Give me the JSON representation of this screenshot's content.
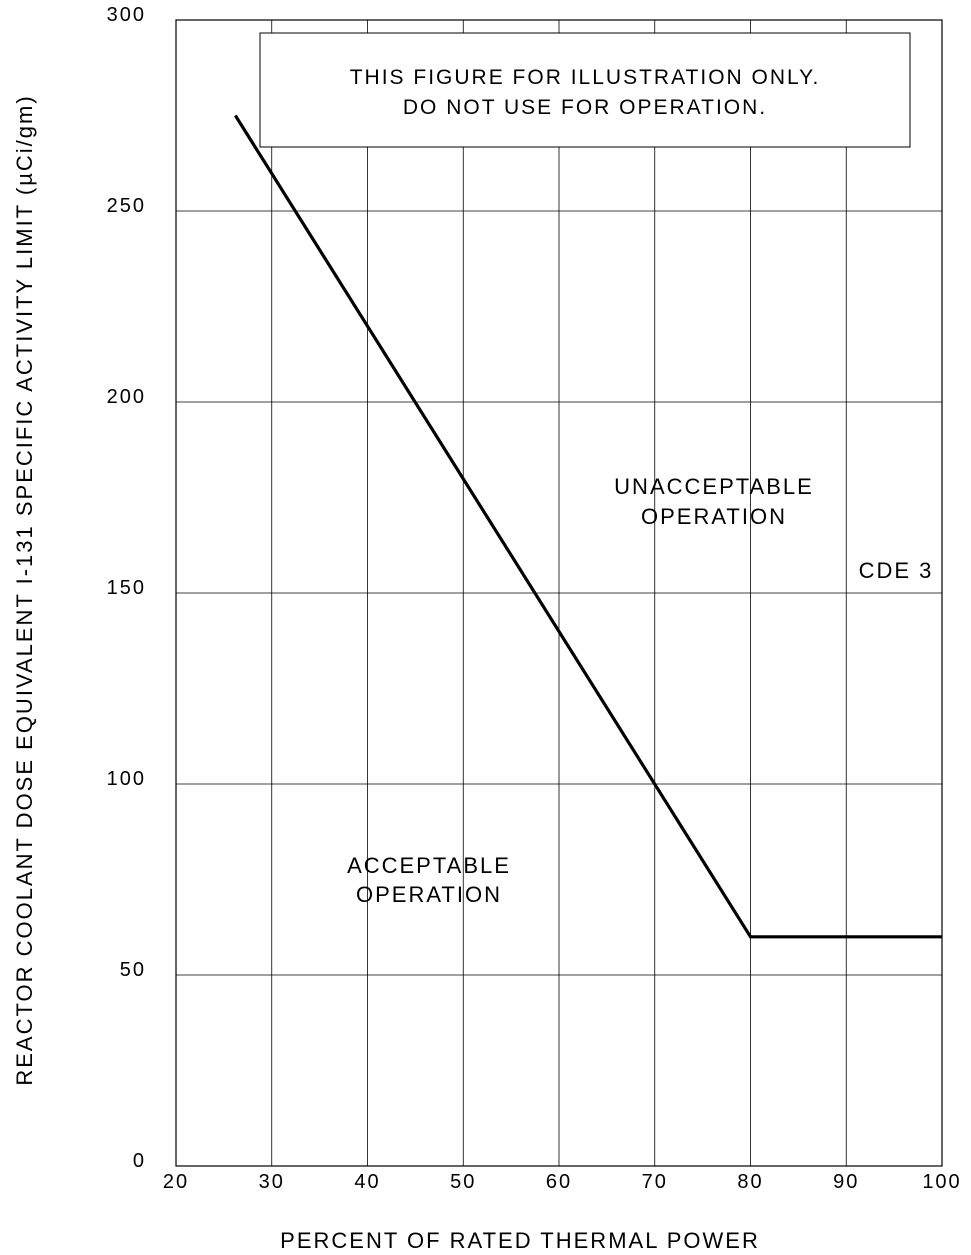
{
  "chart_data": {
    "type": "line",
    "title": "",
    "xlabel": "PERCENT OF RATED THERMAL POWER",
    "ylabel": "REACTOR COOLANT DOSE EQUIVALENT I-131 SPECIFIC ACTIVITY LIMIT (µCi/gm)",
    "xlim": [
      20,
      100
    ],
    "ylim": [
      0,
      300
    ],
    "x_ticks": [
      "20",
      "30",
      "40",
      "50",
      "60",
      "70",
      "80",
      "90",
      "100"
    ],
    "y_ticks": [
      "0",
      "50",
      "100",
      "150",
      "200",
      "250",
      "300"
    ],
    "grid": true,
    "legend": "none",
    "series": [
      {
        "x": [
          26.2,
          80,
          100
        ],
        "y": [
          275,
          60,
          60
        ],
        "color": "#000000"
      }
    ],
    "annotations": {
      "disclaimer_line1": "THIS FIGURE FOR ILLUSTRATION ONLY.",
      "disclaimer_line2": "DO NOT USE FOR OPERATION.",
      "unacceptable_line1": "UNACCEPTABLE",
      "unacceptable_line2": "OPERATION",
      "acceptable_line1": "ACCEPTABLE",
      "acceptable_line2": "OPERATION",
      "figure_id": "CDE 3"
    }
  }
}
